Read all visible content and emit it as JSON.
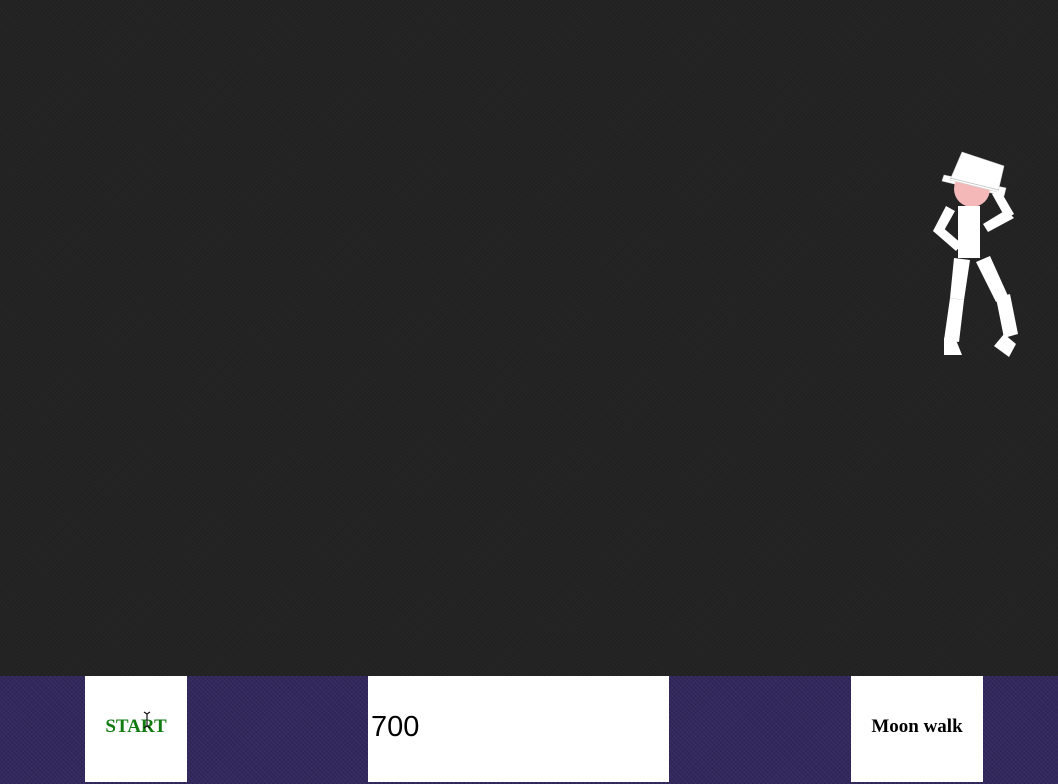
{
  "controls": {
    "start_label": "START",
    "speed_value": "700",
    "moonwalk_label": "Moon walk"
  },
  "colors": {
    "stage_bg": "#232323",
    "controls_bg": "#33285e",
    "start_text": "#117a11",
    "dancer_body": "#ffffff",
    "dancer_face": "#f4b8b8"
  }
}
